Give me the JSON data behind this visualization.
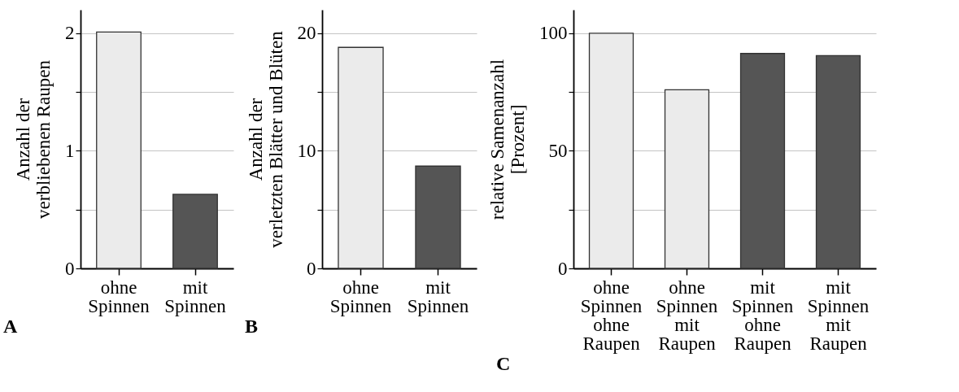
{
  "chart_data": [
    {
      "type": "bar",
      "categories": [
        "ohne\nSpinnen",
        "mit\nSpinnen"
      ],
      "values": [
        2.01,
        0.63
      ],
      "colors": [
        "#ebebeb",
        "#555555"
      ],
      "ylabel": "Anzahl der\nverbliebenen Raupen",
      "ylim": [
        0,
        2.2
      ],
      "yticks": [
        0,
        {
          "value": 0.5,
          "label": null
        },
        1,
        {
          "value": 1.5,
          "label": null
        },
        2
      ],
      "grid": "y",
      "annotations": [
        "A"
      ]
    },
    {
      "type": "bar",
      "categories": [
        "ohne\nSpinnen",
        "mit\nSpinnen"
      ],
      "values": [
        18.8,
        8.7
      ],
      "colors": [
        "#ebebeb",
        "#555555"
      ],
      "ylabel": "Anzahl der\nverletzten Blätter und Blüten",
      "ylim": [
        0,
        22
      ],
      "yticks": [
        0,
        {
          "value": 5,
          "label": null
        },
        10,
        {
          "value": 15,
          "label": null
        },
        20
      ],
      "grid": "y",
      "annotations": [
        "B"
      ]
    },
    {
      "type": "bar",
      "categories": [
        "ohne\nSpinnen\nohne\nRaupen",
        "ohne\nSpinnen\nmit\nRaupen",
        "mit\nSpinnen\nohne\nRaupen",
        "mit\nSpinnen\nmit\nRaupen"
      ],
      "values": [
        100,
        76,
        91.4,
        90.5
      ],
      "colors": [
        "#ebebeb",
        "#ebebeb",
        "#555555",
        "#555555"
      ],
      "ylabel": "relative Samenanzahl\n[Prozent]",
      "ylim": [
        0,
        110
      ],
      "yticks": [
        0,
        {
          "value": 25,
          "label": null
        },
        50,
        {
          "value": 75,
          "label": null
        },
        100
      ],
      "grid": "y",
      "annotations": [
        "C"
      ]
    }
  ]
}
